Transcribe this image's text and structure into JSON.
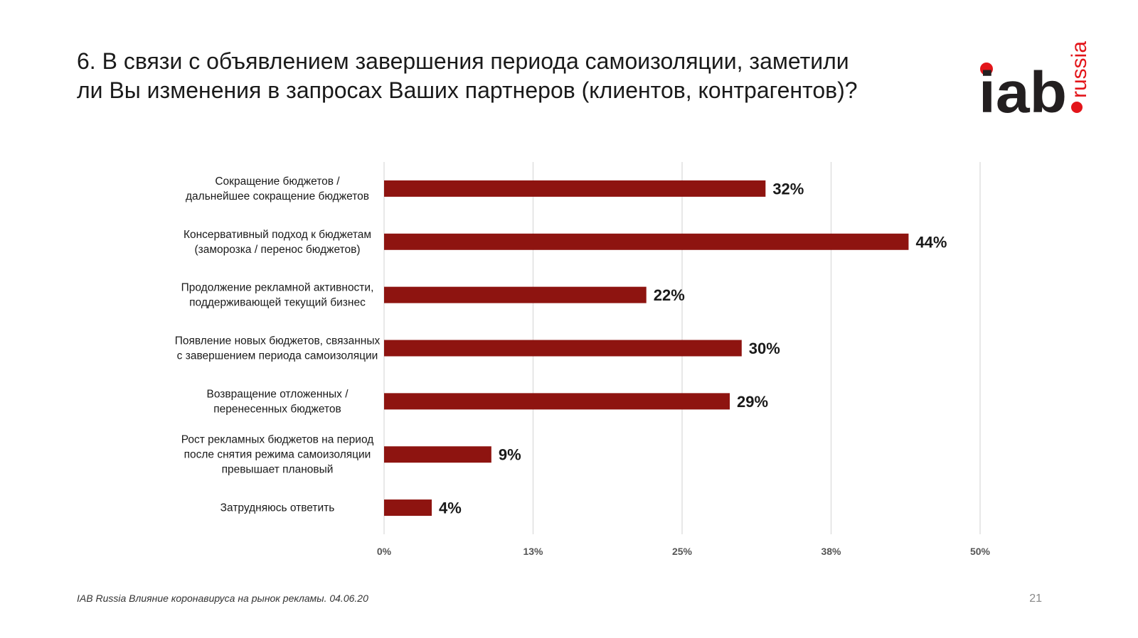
{
  "title": "6. В связи с объявлением завершения периода самоизоляции, заметили\nли Вы изменения в запросах Ваших партнеров (клиентов, контрагентов)?",
  "logo": {
    "brand": "iab",
    "region": "russia",
    "dot_color": "#e3151a",
    "text_color": "#231f20"
  },
  "chart_data": {
    "type": "bar",
    "orientation": "horizontal",
    "categories": [
      [
        "Сокращение бюджетов /",
        "дальнейшее сокращение бюджетов"
      ],
      [
        "Консервативный подход к бюджетам",
        "(заморозка / перенос бюджетов)"
      ],
      [
        "Продолжение рекламной активности,",
        "поддерживающей текущий бизнес"
      ],
      [
        "Появление новых бюджетов, связанных",
        "с завершением периода самоизоляции"
      ],
      [
        "Возвращение отложенных /",
        "перенесенных бюджетов"
      ],
      [
        "Рост рекламных бюджетов на период",
        "после снятия режима самоизоляции",
        "превышает плановый"
      ],
      [
        "Затрудняюсь ответить"
      ]
    ],
    "values": [
      32,
      44,
      22,
      30,
      29,
      9,
      4
    ],
    "value_labels": [
      "32%",
      "44%",
      "22%",
      "30%",
      "29%",
      "9%",
      "4%"
    ],
    "xlim": [
      0,
      50
    ],
    "ticks": [
      0,
      12.5,
      25,
      37.5,
      50
    ],
    "tick_labels": [
      "0%",
      "13%",
      "25%",
      "38%",
      "50%"
    ],
    "grid": true,
    "bar_color": "#8e1410",
    "grid_color": "#d9d9d9"
  },
  "footer": "IAB Russia Влияние коронавируса на рынок рекламы. 04.06.20",
  "page_number": "21"
}
